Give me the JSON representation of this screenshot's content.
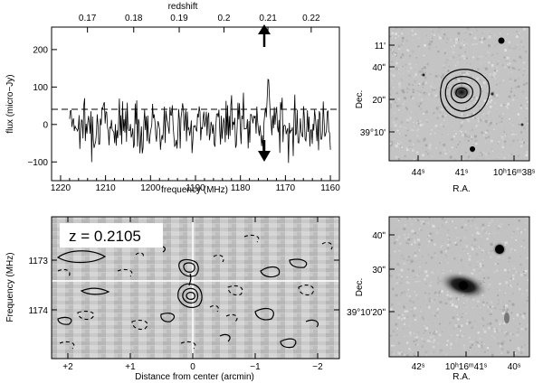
{
  "panel_spectrum": {
    "top_axis_label": "redshift",
    "top_ticks": [
      "0.17",
      "0.18",
      "0.19",
      "0.2",
      "0.21",
      "0.22"
    ],
    "bottom_ticks": [
      "1220",
      "1210",
      "1200",
      "1190",
      "1180",
      "1170",
      "1160"
    ],
    "y_ticks": [
      "200",
      "100",
      "0",
      "−100"
    ],
    "xlabel": "frequency (MHz)",
    "ylabel": "flux (micro−Jy)"
  },
  "panel_pv": {
    "redshift_label": "z = 0.2105",
    "y_ticks": [
      "1173",
      "1174"
    ],
    "x_ticks": [
      "+2",
      "+1",
      "0",
      "−1",
      "−2"
    ],
    "xlabel": "Distance from center (arcmin)",
    "ylabel": "Frequency (MHz)"
  },
  "panel_map_top": {
    "y_ticks": [
      "11'",
      "40ʺ",
      "20ʺ",
      "39°10'"
    ],
    "x_ticks": [
      "44ˢ",
      "41ˢ",
      "10ʰ16ᵐ38ˢ"
    ],
    "xlabel": "R.A.",
    "ylabel": "Dec."
  },
  "panel_map_bottom": {
    "y_ticks": [
      "40ʺ",
      "30ʺ",
      "39°10'20ʺ"
    ],
    "x_ticks": [
      "42ˢ",
      "10ʰ16ᵐ41ˢ",
      "40ˢ"
    ],
    "xlabel": "R.A.",
    "ylabel": "Dec."
  },
  "chart_data": [
    {
      "type": "line",
      "description_key": "spectrum",
      "xlim": [
        1222,
        1158
      ],
      "ylim": [
        -150,
        260
      ],
      "top_axis": {
        "label": "redshift",
        "ticks": [
          0.17,
          0.18,
          0.19,
          0.2,
          0.21,
          0.22
        ]
      },
      "feature_frequency_mhz": 1173.8,
      "feature_peak_flux": 145,
      "x_range_data": [
        1218,
        1160
      ],
      "noise_rms": 35
    }
  ]
}
